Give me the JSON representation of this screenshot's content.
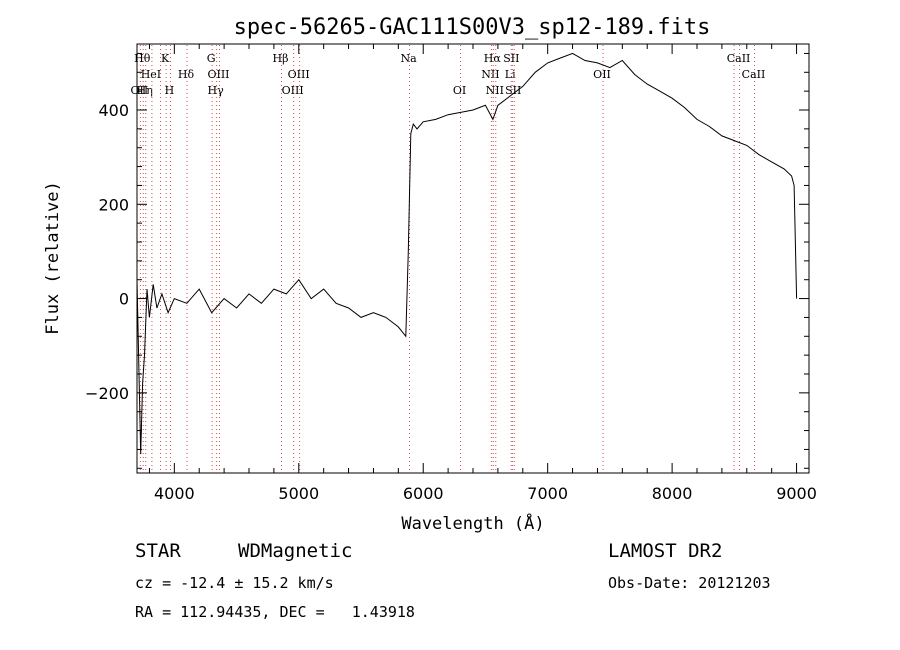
{
  "chart_data": {
    "type": "line",
    "title": "spec-56265-GAC111S00V3_sp12-189.fits",
    "xlabel": "Wavelength (Å)",
    "ylabel": "Flux (relative)",
    "xlim": [
      3700,
      9100
    ],
    "ylim": [
      -370,
      540
    ],
    "x_ticks": [
      4000,
      5000,
      6000,
      7000,
      8000,
      9000
    ],
    "y_ticks": [
      -200,
      0,
      200,
      400
    ],
    "grid": false,
    "series": [
      {
        "x": [
          3700,
          3730,
          3745,
          3760,
          3780,
          3800,
          3830,
          3860,
          3900,
          3950,
          4000,
          4100,
          4200,
          4300,
          4400,
          4500,
          4600,
          4700,
          4800,
          4900,
          5000,
          5100,
          5200,
          5300,
          5400,
          5500,
          5600,
          5700,
          5800,
          5860,
          5880,
          5900,
          5920,
          5950,
          6000,
          6100,
          6200,
          6300,
          6400,
          6500,
          6560,
          6600,
          6700,
          6800,
          6900,
          7000,
          7100,
          7200,
          7300,
          7400,
          7500,
          7600,
          7700,
          7800,
          7900,
          8000,
          8100,
          8200,
          8300,
          8400,
          8500,
          8600,
          8700,
          8800,
          8900,
          8960,
          8980,
          9000
        ],
        "y": [
          40,
          -330,
          -180,
          -120,
          20,
          -40,
          30,
          -20,
          10,
          -30,
          0,
          -10,
          20,
          -30,
          0,
          -20,
          10,
          -10,
          20,
          10,
          40,
          0,
          20,
          -10,
          -20,
          -40,
          -30,
          -40,
          -60,
          -80,
          100,
          350,
          370,
          360,
          375,
          380,
          390,
          395,
          400,
          410,
          380,
          410,
          430,
          450,
          480,
          500,
          510,
          520,
          505,
          500,
          490,
          505,
          475,
          455,
          440,
          425,
          405,
          380,
          365,
          345,
          335,
          325,
          305,
          290,
          275,
          260,
          240,
          0
        ]
      }
    ],
    "line_markers": [
      {
        "x": 3727,
        "label": "OII",
        "row": 2
      },
      {
        "x": 3750,
        "label": "Hθ",
        "row": 0
      },
      {
        "x": 3770,
        "label": "Hη",
        "row": 2
      },
      {
        "x": 3820,
        "label": "HeI",
        "row": 1
      },
      {
        "x": 3889,
        "label": "",
        "row": 2
      },
      {
        "x": 3934,
        "label": "K",
        "row": 0
      },
      {
        "x": 3969,
        "label": "H",
        "row": 2
      },
      {
        "x": 4102,
        "label": "Hδ",
        "row": 1
      },
      {
        "x": 4304,
        "label": "G",
        "row": 0
      },
      {
        "x": 4340,
        "label": "Hγ",
        "row": 2
      },
      {
        "x": 4363,
        "label": "OIII",
        "row": 1
      },
      {
        "x": 4861,
        "label": "Hβ",
        "row": 0
      },
      {
        "x": 4959,
        "label": "OIII",
        "row": 2
      },
      {
        "x": 5007,
        "label": "OIII",
        "row": 1
      },
      {
        "x": 5890,
        "label": "Na",
        "row": 0
      },
      {
        "x": 6300,
        "label": "OI",
        "row": 2
      },
      {
        "x": 6548,
        "label": "NII",
        "row": 1
      },
      {
        "x": 6563,
        "label": "Hα",
        "row": 0
      },
      {
        "x": 6583,
        "label": "NII",
        "row": 2
      },
      {
        "x": 6707,
        "label": "Li",
        "row": 1
      },
      {
        "x": 6716,
        "label": "SII",
        "row": 0
      },
      {
        "x": 6731,
        "label": "SII",
        "row": 2
      },
      {
        "x": 7445,
        "label": "OII",
        "row": 1
      },
      {
        "x": 8498,
        "label": "",
        "row": 0
      },
      {
        "x": 8542,
        "label": "CaII",
        "row": 0
      },
      {
        "x": 8662,
        "label": "CaII",
        "row": 1
      }
    ]
  },
  "info": {
    "object_class": "STAR",
    "subclass": "WDMagnetic",
    "survey": "LAMOST DR2",
    "redshift": "cz = -12.4 ± 15.2 km/s",
    "obs_date": "Obs-Date: 20121203",
    "coords": "RA = 112.94435, DEC =   1.43918"
  }
}
